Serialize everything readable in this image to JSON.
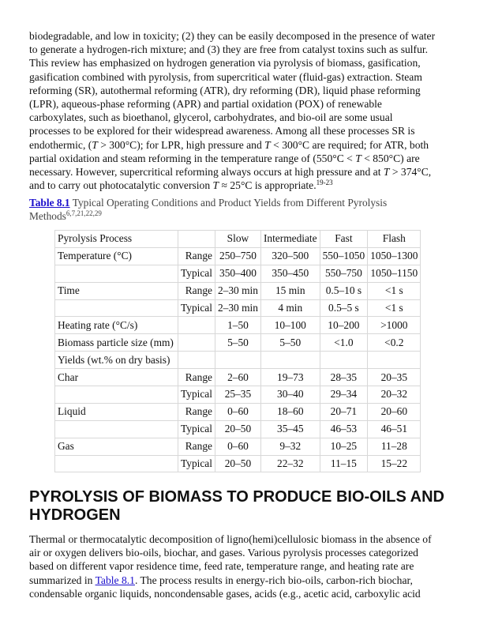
{
  "paragraph1": [
    [
      {
        "t": "biodegradable, and low in toxicity; (2) they can be easily decomposed in the presence of water"
      }
    ],
    [
      {
        "t": "to generate a hydrogen-rich mixture; and (3) they are free from catalyst toxins such as sulfur."
      }
    ],
    [
      {
        "t": "This review has emphasized on hydrogen generation via pyrolysis of biomass, gasification,"
      }
    ],
    [
      {
        "t": "gasification combined with pyrolysis, from supercritical water (fluid-gas) extraction. Steam"
      }
    ],
    [
      {
        "t": "reforming (SR), autothermal reforming (ATR), dry reforming (DR), liquid phase reforming"
      }
    ],
    [
      {
        "t": "(LPR), aqueous-phase reforming (APR) and partial oxidation (POX) of renewable"
      }
    ],
    [
      {
        "t": "carboxylates, such as bioethanol, glycerol, carbohydrates, and bio-oil are some usual"
      }
    ],
    [
      {
        "t": "processes to be explored for their widespread awareness. Among all these processes SR is"
      }
    ],
    [
      {
        "t": "endothermic, ("
      },
      {
        "t": "T",
        "i": true
      },
      {
        "t": " > 300°C); for LPR, high pressure and "
      },
      {
        "t": "T",
        "i": true
      },
      {
        "t": " < 300°C are required; for ATR, both"
      }
    ],
    [
      {
        "t": "partial oxidation and steam reforming in the temperature range of (550°C < "
      },
      {
        "t": "T",
        "i": true
      },
      {
        "t": " < 850°C) are"
      }
    ],
    [
      {
        "t": "necessary. However, supercritical reforming always occurs at high pressure and at "
      },
      {
        "t": "T",
        "i": true
      },
      {
        "t": " > 374°C,"
      }
    ],
    [
      {
        "t": "and to carry out photocatalytic conversion "
      },
      {
        "t": "T",
        "i": true
      },
      {
        "t": " ≈ 25°C is appropriate."
      },
      {
        "t": "19-23",
        "sup": true
      }
    ]
  ],
  "caption": {
    "link": "Table 8.1",
    "text": " Typical Operating Conditions and Product Yields from Different Pyrolysis",
    "text2": "Methods",
    "refs": "6,7,21,22,29"
  },
  "table": {
    "header": [
      "Pyrolysis Process",
      "",
      "Slow",
      "Intermediate",
      "Fast",
      "Flash"
    ],
    "rows": [
      [
        "Temperature (°C)",
        "Range",
        "250–750",
        "320–500",
        "550–1050",
        "1050–1300"
      ],
      [
        "",
        "Typical",
        "350–400",
        "350–450",
        "550–750",
        "1050–1150"
      ],
      [
        "Time",
        "Range",
        "2–30 min",
        "15 min",
        "0.5–10 s",
        "<1 s"
      ],
      [
        "",
        "Typical",
        "2–30 min",
        "4 min",
        "0.5–5 s",
        "<1 s"
      ],
      [
        "Heating rate (°C/s)",
        "",
        "1–50",
        "10–100",
        "10–200",
        ">1000"
      ],
      [
        "Biomass particle size (mm)",
        "",
        "5–50",
        "5–50",
        "<1.0",
        "<0.2"
      ],
      [
        "Yields (wt.% on dry basis)",
        "",
        "",
        "",
        "",
        ""
      ],
      [
        "Char",
        "Range",
        "2–60",
        "19–73",
        "28–35",
        "20–35"
      ],
      [
        "",
        "Typical",
        "25–35",
        "30–40",
        "29–34",
        "20–32"
      ],
      [
        "Liquid",
        "Range",
        "0–60",
        "18–60",
        "20–71",
        "20–60"
      ],
      [
        "",
        "Typical",
        "20–50",
        "35–45",
        "46–53",
        "46–51"
      ],
      [
        "Gas",
        "Range",
        "0–60",
        "9–32",
        "10–25",
        "11–28"
      ],
      [
        "",
        "Typical",
        "20–50",
        "22–32",
        "11–15",
        "15–22"
      ]
    ]
  },
  "heading": {
    "line1": "PYROLYSIS OF BIOMASS TO PRODUCE BIO-OILS AND",
    "line2": "HYDROGEN"
  },
  "paragraph2": [
    [
      {
        "t": "Thermal or thermocatalytic decomposition of ligno(hemi)cellulosic biomass in the absence of"
      }
    ],
    [
      {
        "t": "air or oxygen delivers bio-oils, biochar, and gases. Various pyrolysis processes categorized"
      }
    ],
    [
      {
        "t": "based on different vapor residence time, feed rate, temperature range, and heating rate are"
      }
    ],
    [
      {
        "t": "summarized in "
      },
      {
        "t": "Table 8.1",
        "link": true
      },
      {
        "t": ". The process results in energy-rich bio-oils, carbon-rich biochar,"
      }
    ],
    [
      {
        "t": "condensable organic liquids, noncondensable gases, acids (e.g., acetic acid, carboxylic acid"
      }
    ]
  ],
  "colors": {
    "link": "#1a0dcc",
    "border": "#d8d8d8"
  }
}
